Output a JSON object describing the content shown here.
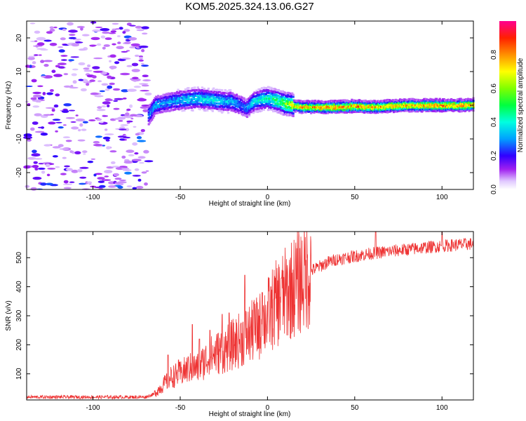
{
  "chart_data": [
    {
      "type": "heatmap",
      "title": "KOM5.2025.324.13.06.G27",
      "xlabel": "Height of straight line (km)",
      "ylabel": "Frequency (Hz)",
      "xlim": [
        -138,
        118
      ],
      "ylim": [
        -25,
        25
      ],
      "xticks": [
        -100,
        -50,
        0,
        50,
        100
      ],
      "yticks": [
        -20,
        -10,
        0,
        10,
        20
      ],
      "xtick_labels": [
        "-100",
        "-50",
        "0",
        "50",
        "100"
      ],
      "ytick_labels": [
        "-20",
        "-10",
        "0",
        "10",
        "20"
      ],
      "colorbar": {
        "label": "Normalized spectral amplitude",
        "range": [
          0,
          1
        ],
        "ticks": [
          0.0,
          0.2,
          0.4,
          0.6,
          0.8
        ],
        "tick_labels": [
          "0.0",
          "0.2",
          "0.4",
          "0.6",
          "0.8"
        ]
      },
      "noise_region": {
        "x_range": [
          -138,
          -68
        ],
        "amplitude": 0.12
      },
      "ridge": {
        "x": [
          -68,
          -64,
          -60,
          -50,
          -40,
          -30,
          -20,
          -15,
          -12,
          -8,
          -5,
          0,
          5,
          10,
          15,
          20,
          30,
          40,
          50,
          60,
          70,
          80,
          90,
          100,
          110,
          118
        ],
        "freq": [
          -3,
          0,
          0.5,
          1.5,
          2,
          1.5,
          1,
          0,
          -1,
          1,
          1.5,
          2,
          1.5,
          0.5,
          0,
          -0.5,
          -0.5,
          -0.5,
          -0.2,
          -0.5,
          -0.2,
          0,
          0,
          0,
          0,
          0.2
        ],
        "amplitude": [
          0.3,
          0.35,
          0.3,
          0.35,
          0.4,
          0.4,
          0.35,
          0.3,
          0.3,
          0.4,
          0.4,
          0.45,
          0.5,
          0.6,
          0.75,
          0.8,
          0.85,
          0.85,
          0.85,
          0.8,
          0.85,
          0.8,
          0.85,
          0.85,
          0.85,
          0.85
        ]
      }
    },
    {
      "type": "line",
      "xlabel": "Height of straight line (km)",
      "ylabel": "SNR (v/v)",
      "xlim": [
        -138,
        118
      ],
      "ylim": [
        10,
        590
      ],
      "xticks": [
        -100,
        -50,
        0,
        50,
        100
      ],
      "yticks": [
        100,
        200,
        300,
        400,
        500
      ],
      "xtick_labels": [
        "-100",
        "-50",
        "0",
        "50",
        "100"
      ],
      "ytick_labels": [
        "100",
        "200",
        "300",
        "400",
        "500"
      ],
      "color": "#ee3333",
      "envelope": {
        "x": [
          -138,
          -100,
          -70,
          -65,
          -60,
          -55,
          -50,
          -45,
          -40,
          -35,
          -30,
          -25,
          -20,
          -15,
          -10,
          -5,
          0,
          5,
          10,
          15,
          20,
          25,
          30,
          35,
          40,
          50,
          60,
          70,
          80,
          90,
          100,
          110,
          118
        ],
        "snr": [
          20,
          20,
          20,
          30,
          60,
          90,
          100,
          120,
          120,
          150,
          170,
          180,
          200,
          220,
          240,
          260,
          300,
          340,
          370,
          400,
          430,
          455,
          470,
          485,
          495,
          505,
          515,
          522,
          528,
          535,
          540,
          545,
          548
        ]
      },
      "spikes": [
        {
          "x": -57,
          "snr": 165
        },
        {
          "x": -51,
          "snr": 148
        },
        {
          "x": -43,
          "snr": 270
        },
        {
          "x": -39,
          "snr": 220
        },
        {
          "x": -33,
          "snr": 250
        },
        {
          "x": -26,
          "snr": 305
        },
        {
          "x": -22,
          "snr": 310
        },
        {
          "x": -13,
          "snr": 440
        },
        {
          "x": -8,
          "snr": 345
        },
        {
          "x": -3,
          "snr": 380
        },
        {
          "x": 2,
          "snr": 400
        },
        {
          "x": 8,
          "snr": 430
        },
        {
          "x": 62,
          "snr": 590
        },
        {
          "x": 100,
          "snr": 590
        }
      ]
    }
  ]
}
